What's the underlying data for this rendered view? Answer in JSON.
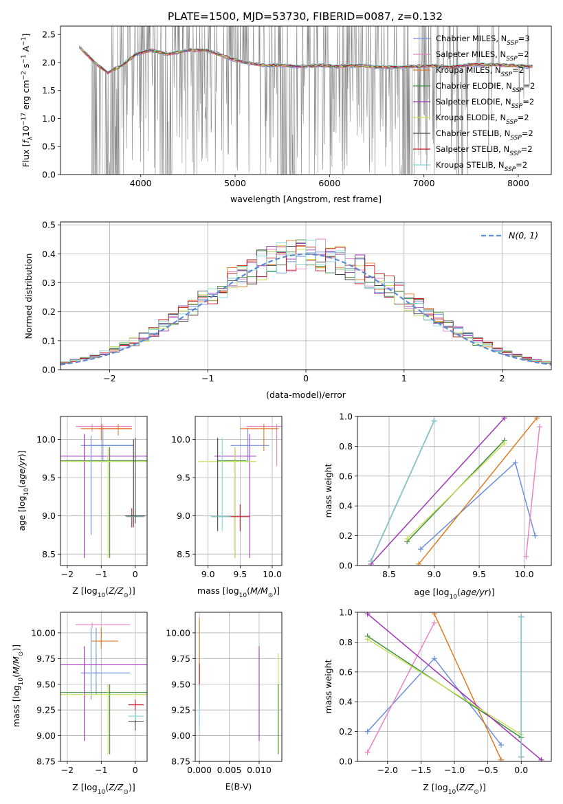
{
  "figure_title": "PLATE=1500, MJD=53730, FIBERID=0087, z=0.132",
  "models": [
    {
      "name": "Chabrier MILES",
      "nssp": "3",
      "color": "#6a8fd9"
    },
    {
      "name": "Salpeter MILES",
      "nssp": "2",
      "color": "#e785c4"
    },
    {
      "name": "Kroupa MILES",
      "nssp": "2",
      "color": "#e07a1f"
    },
    {
      "name": "Chabrier ELODIE",
      "nssp": "2",
      "color": "#3e8e3e"
    },
    {
      "name": "Salpeter ELODIE",
      "nssp": "2",
      "color": "#a033b8"
    },
    {
      "name": "Kroupa ELODIE",
      "nssp": "2",
      "color": "#c8e05a"
    },
    {
      "name": "Chabrier STELIB",
      "nssp": "2",
      "color": "#444444"
    },
    {
      "name": "Salpeter STELIB",
      "nssp": "2",
      "color": "#c8141e"
    },
    {
      "name": "Kroupa STELIB",
      "nssp": "2",
      "color": "#7dd6d6"
    }
  ],
  "chart_data": [
    {
      "id": "spectrum",
      "type": "line",
      "xlabel": "wavelength [Angstrom, rest frame]",
      "ylabel": "Flux [fλ10⁻¹⁷ erg cm⁻² s⁻¹ A⁻¹]",
      "xlim": [
        3150,
        8350
      ],
      "ylim": [
        0,
        2.65
      ],
      "xticks": [
        4000,
        5000,
        6000,
        7000,
        8000
      ],
      "yticks": [
        0.0,
        0.5,
        1.0,
        1.5,
        2.0,
        2.5
      ],
      "data_color": "#888888",
      "continuum": {
        "x": [
          3350,
          3500,
          3650,
          3800,
          3950,
          4100,
          4300,
          4500,
          4700,
          4900,
          5100,
          5300,
          5500,
          5700,
          5900,
          6100,
          6300,
          6500,
          6700,
          6900,
          7100,
          7300,
          7500,
          7700,
          7900,
          8100
        ],
        "y": [
          2.28,
          2.02,
          1.82,
          1.95,
          2.15,
          2.22,
          2.15,
          2.22,
          2.22,
          2.1,
          2.0,
          1.95,
          1.95,
          1.93,
          1.95,
          1.93,
          1.95,
          1.92,
          1.92,
          1.93,
          1.94,
          1.92,
          1.96,
          1.96,
          1.95,
          1.93
        ]
      },
      "gap_ranges": [
        [
          3480,
          3560
        ],
        [
          3590,
          3780
        ],
        [
          4200,
          4330
        ],
        [
          5450,
          5650
        ],
        [
          6750,
          6900
        ],
        [
          7350,
          7420
        ]
      ]
    },
    {
      "id": "residuals",
      "type": "step",
      "xlabel": "(data-model)/error",
      "ylabel": "Normed distribution",
      "xlim": [
        -2.5,
        2.5
      ],
      "ylim": [
        0,
        0.51
      ],
      "xticks": [
        -2,
        -1,
        0,
        1,
        2
      ],
      "yticks": [
        0.0,
        0.1,
        0.2,
        0.3,
        0.4,
        0.5
      ],
      "grid": true,
      "legend": "N(0, 1)",
      "gaussian": {
        "mean": 0,
        "sigma": 1
      },
      "bin_width": 0.1
    },
    {
      "id": "age-vs-Z",
      "type": "errorbar",
      "xlabel": "Z [log10(Z/Z⊙)]",
      "ylabel": "age [log10(age/yr)]",
      "xlim": [
        -2.2,
        0.35
      ],
      "ylim": [
        8.35,
        10.3
      ],
      "xticks": [
        -2,
        -1,
        0
      ],
      "yticks": [
        8.5,
        9.0,
        9.5,
        10.0
      ],
      "grid": true,
      "points": [
        {
          "model": 0,
          "x": -1.3,
          "y": 9.92
        },
        {
          "model": 0,
          "x": -0.95,
          "y": 9.92
        },
        {
          "model": 1,
          "x": -1.27,
          "y": 10.17
        },
        {
          "model": 1,
          "x": -0.95,
          "y": 10.17
        },
        {
          "model": 2,
          "x": -1.0,
          "y": 10.14
        },
        {
          "model": 2,
          "x": -0.5,
          "y": 10.14
        },
        {
          "model": 3,
          "x": -0.75,
          "y": 9.72
        },
        {
          "model": 3,
          "x": -0.75,
          "y": 9.72
        },
        {
          "model": 4,
          "x": -1.5,
          "y": 9.78
        },
        {
          "model": 4,
          "x": -0.05,
          "y": 9.78
        },
        {
          "model": 5,
          "x": -0.8,
          "y": 9.71
        },
        {
          "model": 5,
          "x": -0.8,
          "y": 9.71
        },
        {
          "model": 6,
          "x": -0.05,
          "y": 8.99
        },
        {
          "model": 6,
          "x": 0.0,
          "y": 9.0
        },
        {
          "model": 7,
          "x": -0.1,
          "y": 8.99
        },
        {
          "model": 7,
          "x": 0.0,
          "y": 8.99
        },
        {
          "model": 8,
          "x": 0.0,
          "y": 8.99
        },
        {
          "model": 8,
          "x": 0.0,
          "y": 8.99
        }
      ]
    },
    {
      "id": "age-vs-mass",
      "type": "errorbar",
      "xlabel": "mass [log10(M/M⊙)]",
      "ylabel": "",
      "xlim": [
        8.8,
        10.15
      ],
      "ylim": [
        8.35,
        10.3
      ],
      "xticks": [
        9.0,
        9.5,
        10.0
      ],
      "yticks": [
        8.5,
        9.0,
        9.5,
        10.0
      ],
      "grid": true
    },
    {
      "id": "weight-vs-age",
      "type": "line",
      "xlabel": "age [log10(age/yr)]",
      "ylabel": "mass weight",
      "xlim": [
        8.15,
        10.3
      ],
      "ylim": [
        0,
        1.0
      ],
      "xticks": [
        8.5,
        9.0,
        9.5,
        10.0
      ],
      "yticks": [
        0.0,
        0.2,
        0.4,
        0.6,
        0.8,
        1.0
      ],
      "grid": true,
      "series": [
        {
          "model": 0,
          "x": [
            8.85,
            9.9,
            10.12
          ],
          "y": [
            0.11,
            0.69,
            0.2
          ]
        },
        {
          "model": 1,
          "x": [
            10.02,
            10.17
          ],
          "y": [
            0.06,
            0.93
          ]
        },
        {
          "model": 2,
          "x": [
            8.83,
            10.14
          ],
          "y": [
            0.01,
            0.99
          ]
        },
        {
          "model": 3,
          "x": [
            8.7,
            9.78
          ],
          "y": [
            0.16,
            0.84
          ]
        },
        {
          "model": 4,
          "x": [
            8.3,
            9.78
          ],
          "y": [
            0.01,
            0.99
          ]
        },
        {
          "model": 5,
          "x": [
            8.7,
            9.78
          ],
          "y": [
            0.18,
            0.82
          ]
        },
        {
          "model": 6,
          "x": [
            8.3,
            9.0
          ],
          "y": [
            0.03,
            0.97
          ]
        },
        {
          "model": 7,
          "x": [
            8.3,
            9.0
          ],
          "y": [
            0.03,
            0.97
          ]
        },
        {
          "model": 8,
          "x": [
            8.3,
            9.0
          ],
          "y": [
            0.03,
            0.97
          ]
        }
      ]
    },
    {
      "id": "mass-vs-Z",
      "type": "errorbar",
      "xlabel": "Z [log10(Z/Z⊙)]",
      "ylabel": "mass [log10(M/M⊙)]",
      "xlim": [
        -2.2,
        0.35
      ],
      "ylim": [
        8.75,
        10.2
      ],
      "xticks": [
        -2,
        -1,
        0
      ],
      "yticks": [
        8.75,
        9.0,
        9.25,
        9.5,
        9.75,
        10.0
      ],
      "grid": true
    },
    {
      "id": "mass-vs-ebv",
      "type": "errorbar",
      "xlabel": "E(B-V)",
      "ylabel": "",
      "xlim": [
        -0.0007,
        0.0138
      ],
      "ylim": [
        8.75,
        10.2
      ],
      "xticks": [
        0.0,
        0.005,
        0.01
      ],
      "yticks": [
        8.75,
        9.0,
        9.25,
        9.5,
        9.75,
        10.0
      ],
      "grid": true
    },
    {
      "id": "weight-vs-Z",
      "type": "line",
      "xlabel": "Z [log10(Z/Z⊙)]",
      "ylabel": "mass weight",
      "xlim": [
        -2.45,
        0.45
      ],
      "ylim": [
        0,
        1.0
      ],
      "xticks": [
        -2.0,
        -1.5,
        -1.0,
        -0.5,
        0.0
      ],
      "yticks": [
        0.0,
        0.2,
        0.4,
        0.6,
        0.8,
        1.0
      ],
      "grid": true,
      "series": [
        {
          "model": 0,
          "x": [
            -2.3,
            -1.3,
            -0.3
          ],
          "y": [
            0.2,
            0.69,
            0.11
          ]
        },
        {
          "model": 1,
          "x": [
            -2.3,
            -1.3
          ],
          "y": [
            0.06,
            0.93
          ]
        },
        {
          "model": 2,
          "x": [
            -1.3,
            -0.3
          ],
          "y": [
            0.99,
            0.01
          ]
        },
        {
          "model": 3,
          "x": [
            -2.3,
            0.0
          ],
          "y": [
            0.84,
            0.16
          ]
        },
        {
          "model": 4,
          "x": [
            -2.3,
            0.3
          ],
          "y": [
            0.99,
            0.01
          ]
        },
        {
          "model": 5,
          "x": [
            -2.3,
            0.0
          ],
          "y": [
            0.82,
            0.18
          ]
        },
        {
          "model": 6,
          "x": [
            0.0,
            0.0
          ],
          "y": [
            0.03,
            0.97
          ]
        },
        {
          "model": 7,
          "x": [
            0.0,
            0.0
          ],
          "y": [
            0.03,
            0.97
          ]
        },
        {
          "model": 8,
          "x": [
            0.0,
            0.0
          ],
          "y": [
            0.03,
            0.97
          ]
        }
      ]
    }
  ]
}
